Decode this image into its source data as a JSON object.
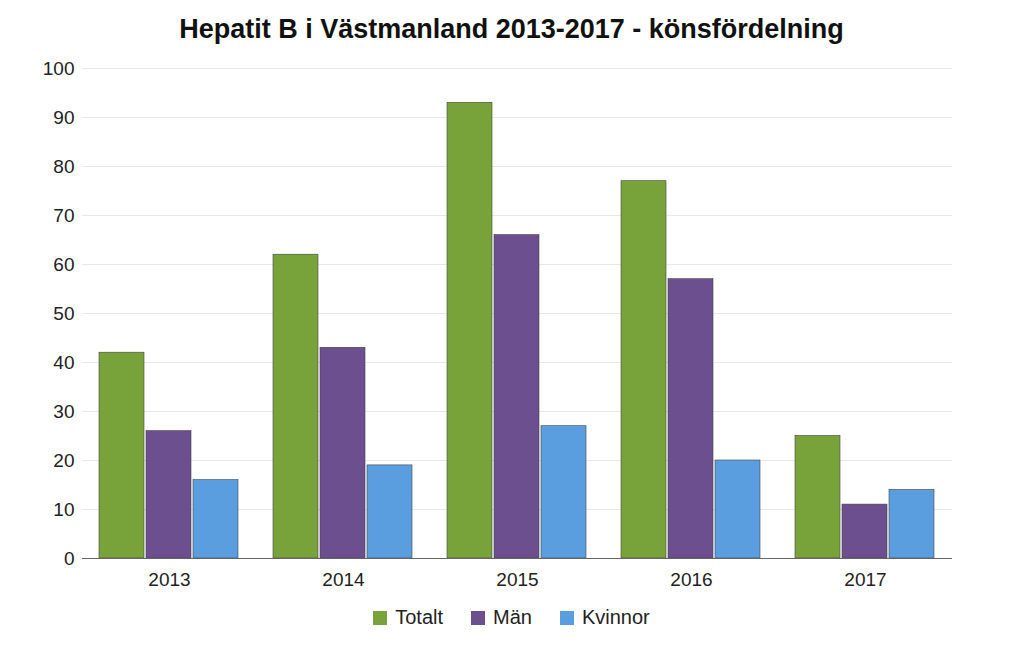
{
  "chart_data": {
    "type": "bar",
    "title": "Hepatit B i Västmanland 2013-2017 - könsfördelning",
    "categories": [
      "2013",
      "2014",
      "2015",
      "2016",
      "2017"
    ],
    "series": [
      {
        "name": "Totalt",
        "color": "#78a33b",
        "values": [
          42,
          62,
          93,
          77,
          25
        ]
      },
      {
        "name": "Män",
        "color": "#6b4f8e",
        "values": [
          26,
          43,
          66,
          57,
          11
        ]
      },
      {
        "name": "Kvinnor",
        "color": "#5b9ee0",
        "values": [
          16,
          19,
          27,
          20,
          14
        ]
      }
    ],
    "ylim": [
      0,
      100
    ],
    "yticks": [
      0,
      10,
      20,
      30,
      40,
      50,
      60,
      70,
      80,
      90,
      100
    ],
    "grid": true,
    "legend": "bottom"
  }
}
